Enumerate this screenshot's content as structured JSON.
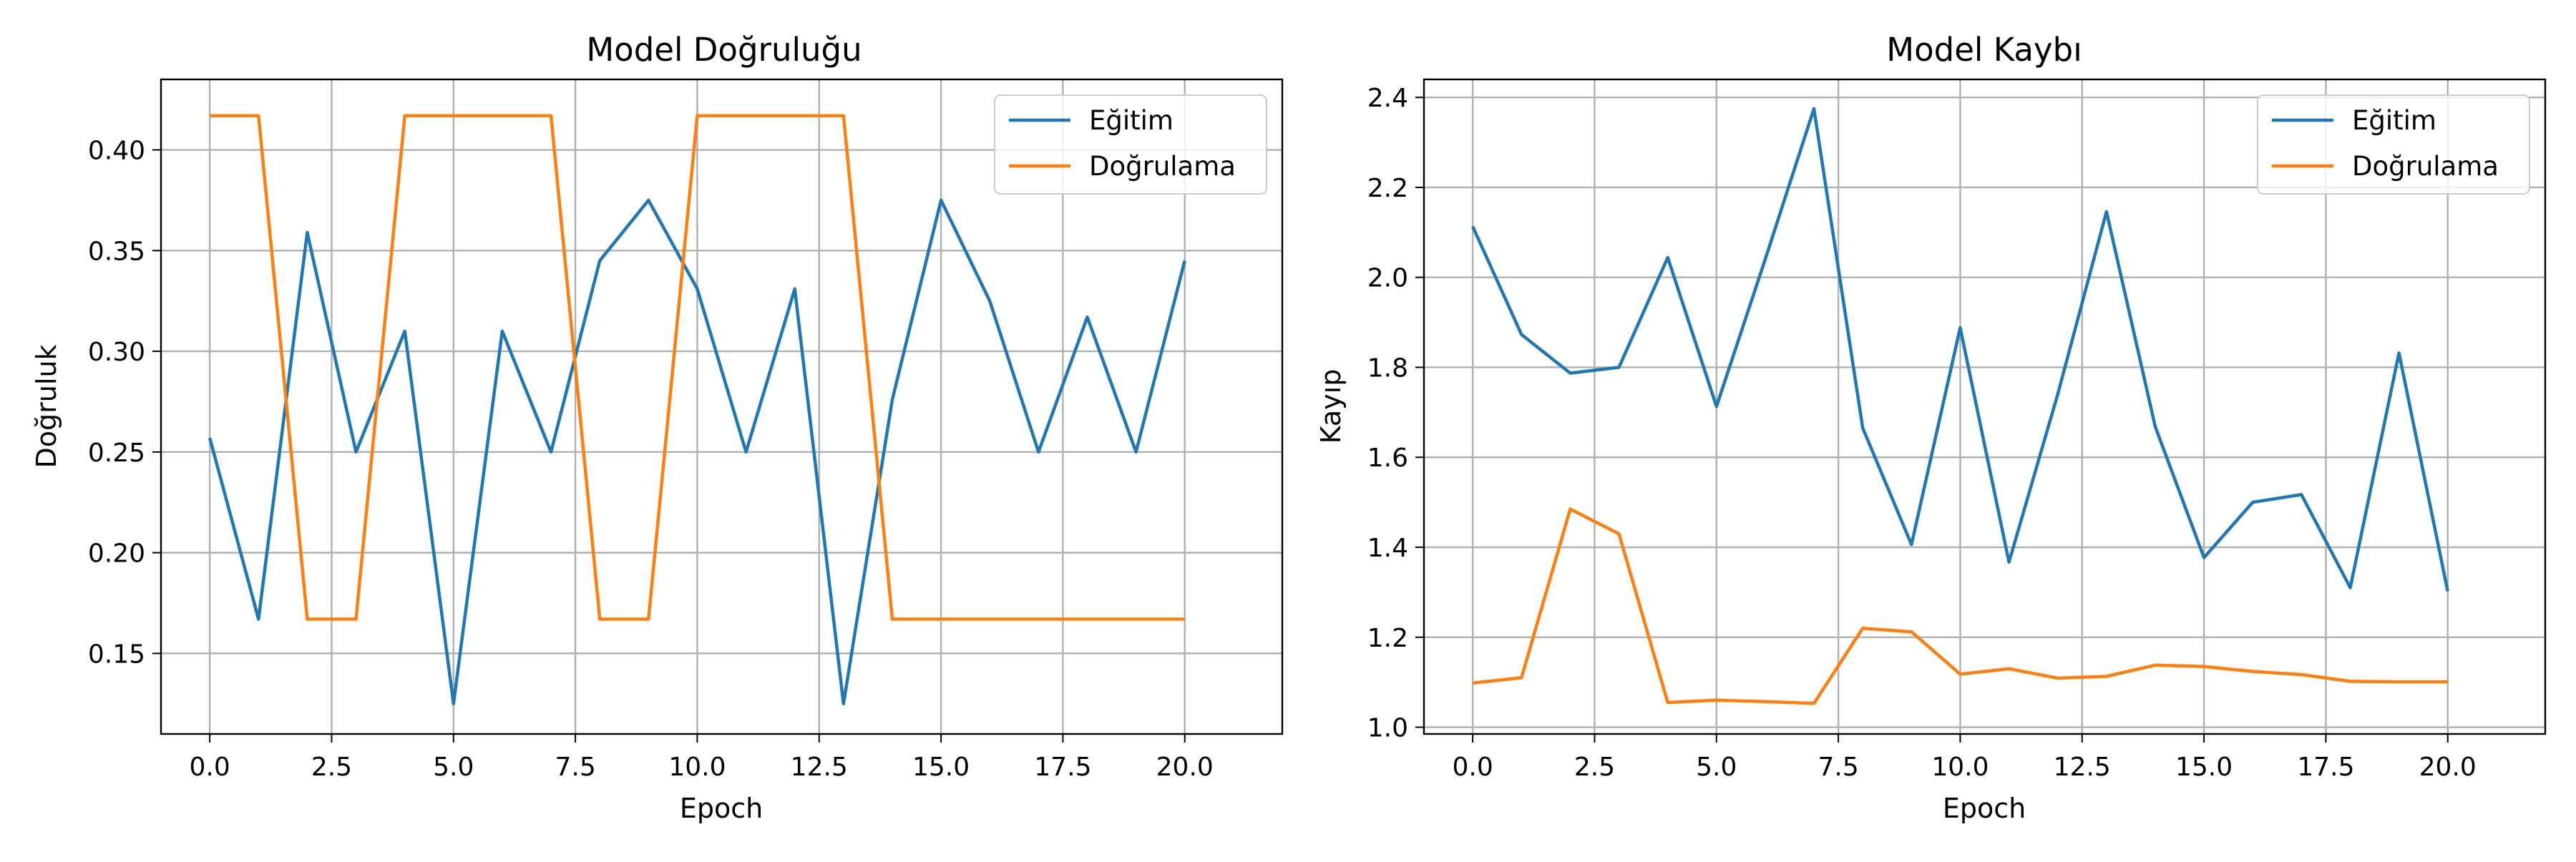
{
  "chart_data": [
    {
      "type": "line",
      "title": "Model Doğruluğu",
      "xlabel": "Epoch",
      "ylabel": "Doğruluk",
      "xlim": [
        -1,
        22
      ],
      "ylim": [
        0.11,
        0.435
      ],
      "xticks": [
        0,
        2.5,
        5,
        7.5,
        10,
        12.5,
        15,
        17.5,
        20
      ],
      "xtick_labels": [
        "0.0",
        "2.5",
        "5.0",
        "7.5",
        "10.0",
        "12.5",
        "15.0",
        "17.5",
        "20.0"
      ],
      "yticks": [
        0.15,
        0.2,
        0.25,
        0.3,
        0.35,
        0.4
      ],
      "ytick_labels": [
        "0.15",
        "0.20",
        "0.25",
        "0.30",
        "0.35",
        "0.40"
      ],
      "grid": true,
      "legend_position": "top-right",
      "x": [
        0,
        1,
        2,
        3,
        4,
        5,
        6,
        7,
        8,
        9,
        10,
        11,
        12,
        13,
        14,
        15,
        16,
        17,
        18,
        19,
        20
      ],
      "series": [
        {
          "name": "Eğitim",
          "color": "#1f77b4",
          "values": [
            0.257,
            0.167,
            0.359,
            0.25,
            0.31,
            0.125,
            0.31,
            0.25,
            0.345,
            0.375,
            0.331,
            0.25,
            0.331,
            0.125,
            0.276,
            0.375,
            0.325,
            0.25,
            0.317,
            0.25,
            0.345
          ]
        },
        {
          "name": "Doğrulama",
          "color": "#ff7f0e",
          "values": [
            0.417,
            0.417,
            0.167,
            0.167,
            0.417,
            0.417,
            0.417,
            0.417,
            0.167,
            0.167,
            0.417,
            0.417,
            0.417,
            0.417,
            0.167,
            0.167,
            0.167,
            0.167,
            0.167,
            0.167,
            0.167
          ]
        }
      ]
    },
    {
      "type": "line",
      "title": "Model Kaybı",
      "xlabel": "Epoch",
      "ylabel": "Kayıp",
      "xlim": [
        -1,
        22
      ],
      "ylim": [
        0.985,
        2.44
      ],
      "xticks": [
        0,
        2.5,
        5,
        7.5,
        10,
        12.5,
        15,
        17.5,
        20
      ],
      "xtick_labels": [
        "0.0",
        "2.5",
        "5.0",
        "7.5",
        "10.0",
        "12.5",
        "15.0",
        "17.5",
        "20.0"
      ],
      "yticks": [
        1.0,
        1.2,
        1.4,
        1.6,
        1.8,
        2.0,
        2.2,
        2.4
      ],
      "ytick_labels": [
        "1.0",
        "1.2",
        "1.4",
        "1.6",
        "1.8",
        "2.0",
        "2.2",
        "2.4"
      ],
      "grid": true,
      "legend_position": "top-right",
      "x": [
        0,
        1,
        2,
        3,
        4,
        5,
        6,
        7,
        8,
        9,
        10,
        11,
        12,
        13,
        14,
        15,
        16,
        17,
        18,
        19,
        20
      ],
      "series": [
        {
          "name": "Eğitim",
          "color": "#1f77b4",
          "values": [
            2.113,
            1.873,
            1.787,
            1.8,
            2.044,
            1.713,
            2.04,
            2.375,
            1.665,
            1.406,
            1.888,
            1.367,
            1.74,
            2.146,
            1.668,
            1.377,
            1.5,
            1.517,
            1.31,
            1.832,
            1.302
          ]
        },
        {
          "name": "Doğrulama",
          "color": "#ff7f0e",
          "values": [
            1.098,
            1.11,
            1.485,
            1.43,
            1.055,
            1.06,
            1.057,
            1.053,
            1.22,
            1.212,
            1.118,
            1.13,
            1.109,
            1.113,
            1.138,
            1.135,
            1.124,
            1.117,
            1.102,
            1.101,
            1.101
          ]
        }
      ]
    }
  ]
}
